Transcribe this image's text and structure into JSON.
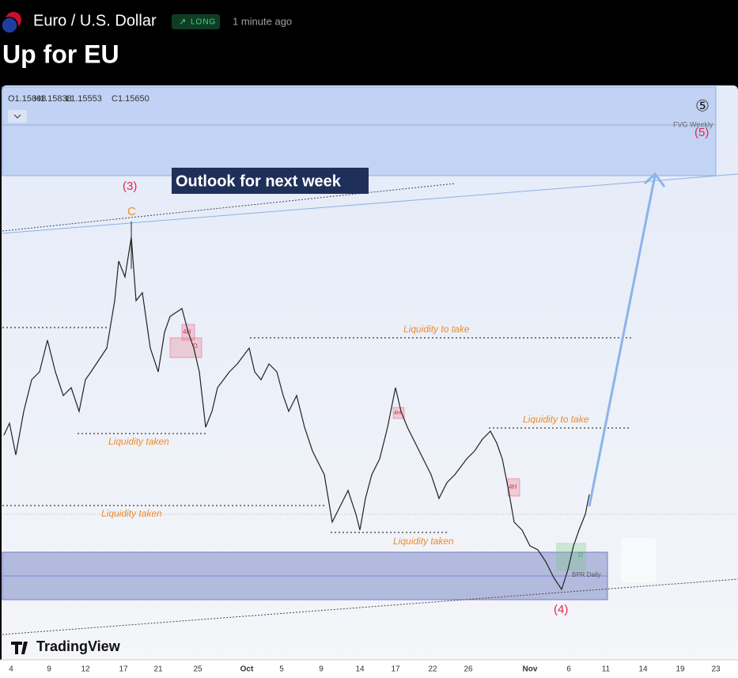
{
  "header": {
    "symbol": "Euro / U.S. Dollar",
    "badge": "LONG",
    "time": "1 minute ago",
    "title": "Up for EU"
  },
  "chart": {
    "ohlc": [
      "O1.15808",
      "H1.15838",
      "L1.15553",
      "C1.15650"
    ],
    "annotations": [
      "(3)",
      "C",
      "Outlook for next week",
      "⑤",
      "FVG Weekly",
      "(5)",
      "Liquidity to take",
      "Liquidity to take",
      "Liquidity taken",
      "Liquidity taken",
      "Liquidity taken",
      "4H",
      "D",
      "4H",
      "4H",
      "D",
      "BPR Daily",
      "(4)"
    ],
    "x_axis": [
      "4",
      "9",
      "12",
      "17",
      "21",
      "25",
      "Oct",
      "5",
      "9",
      "14",
      "17",
      "22",
      "26",
      "Nov",
      "6",
      "11",
      "14",
      "19",
      "23"
    ],
    "brand": "TradingView"
  }
}
